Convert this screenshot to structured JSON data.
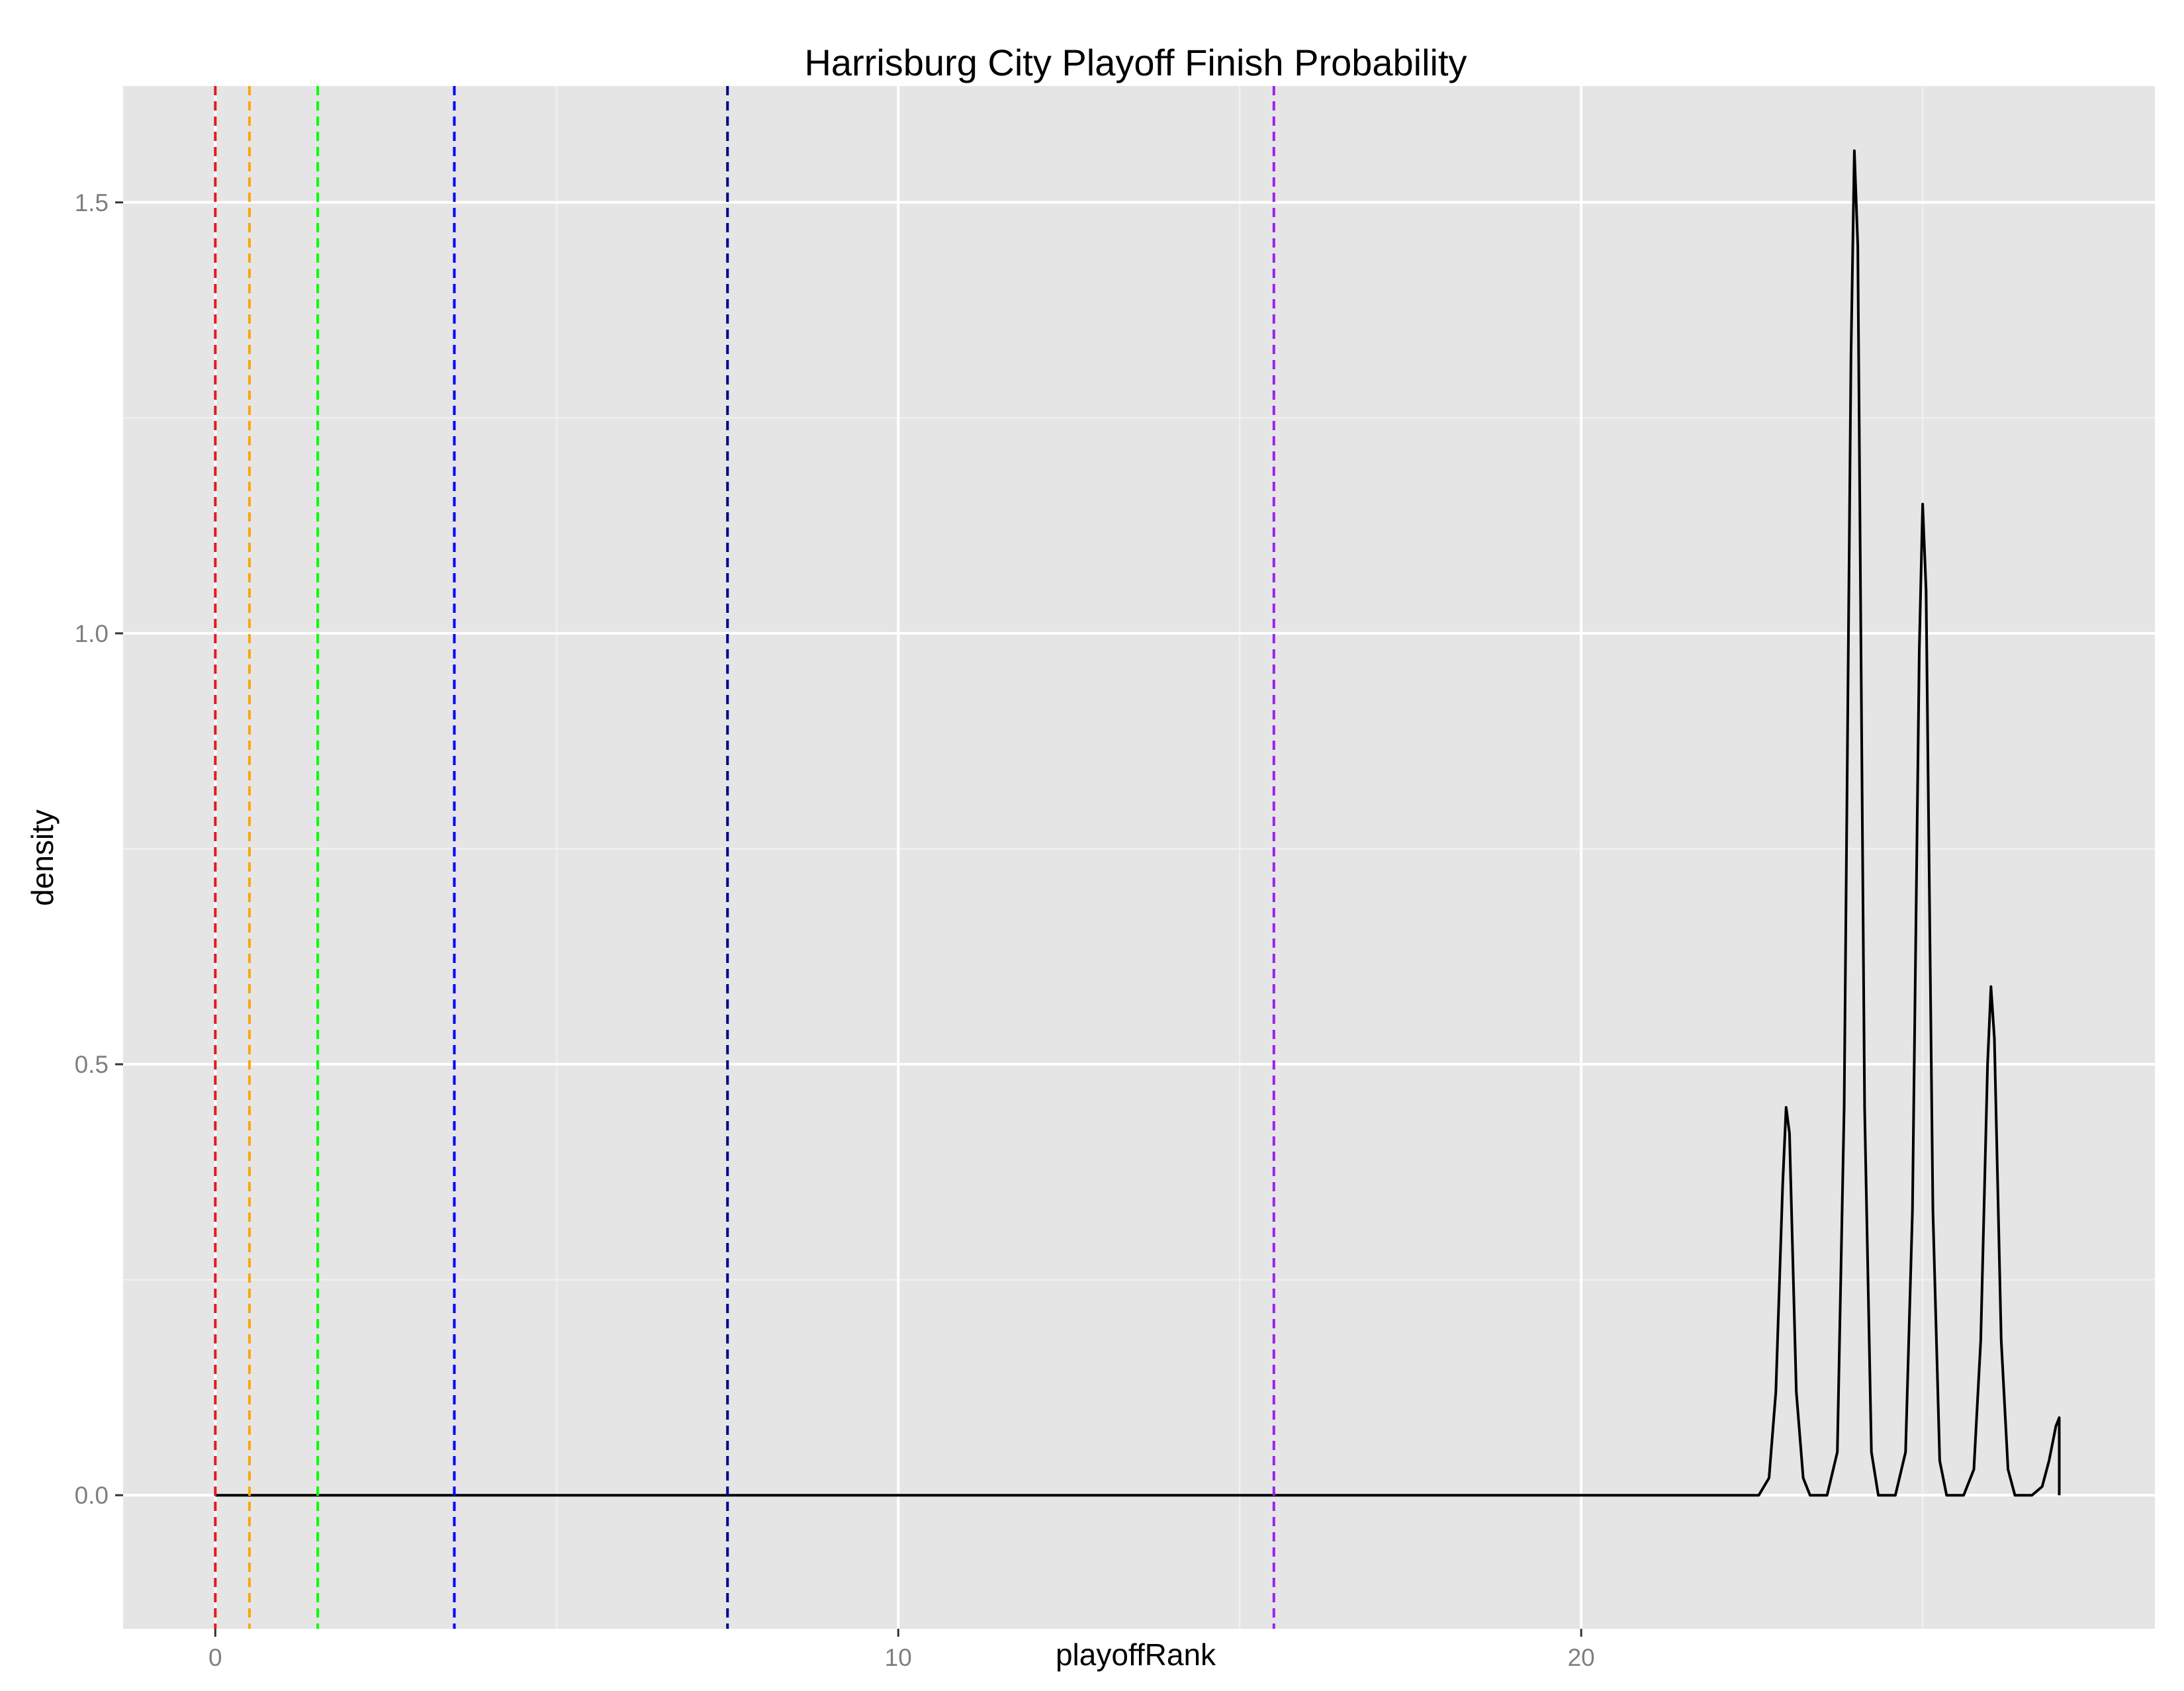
{
  "chart_data": {
    "type": "line",
    "title": "Harrisburg City Playoff Finish Probability",
    "xlabel": "playoffRank",
    "ylabel": "density",
    "xlim": [
      -1.35,
      28.4
    ],
    "ylim": [
      -0.155,
      1.635
    ],
    "x_ticks": [
      0,
      10,
      20
    ],
    "x_tick_labels": [
      "0",
      "10",
      "20"
    ],
    "x_minor_ticks": [
      5,
      15,
      25
    ],
    "y_ticks": [
      0.0,
      0.5,
      1.0,
      1.5
    ],
    "y_tick_labels": [
      "0.0",
      "0.5",
      "1.0",
      "1.5"
    ],
    "y_minor_ticks": [
      0.25,
      0.75,
      1.25
    ],
    "grid": true,
    "legend": "none",
    "colors": {
      "panel_background": "#e5e5e5",
      "grid": "#ffffff",
      "density_line": "#000000",
      "tick_label": "#7f7f7f"
    },
    "reference_lines": [
      {
        "x": 0.0,
        "color": "#e31a1c"
      },
      {
        "x": 0.5,
        "color": "#ffa500"
      },
      {
        "x": 1.5,
        "color": "#00ff00"
      },
      {
        "x": 3.5,
        "color": "#0000ff"
      },
      {
        "x": 7.5,
        "color": "#00008b"
      },
      {
        "x": 15.5,
        "color": "#a020f0"
      }
    ],
    "series": [
      {
        "x": [
          0,
          22.6,
          22.75,
          22.85,
          22.95,
          23.0,
          23.05,
          23.15,
          23.25,
          23.35,
          23.45,
          23.6,
          23.75,
          23.85,
          23.95,
          24.0,
          24.05,
          24.15,
          24.25,
          24.35,
          24.45,
          24.6,
          24.75,
          24.85,
          24.95,
          25.0,
          25.05,
          25.15,
          25.25,
          25.35,
          25.45,
          25.6,
          25.75,
          25.85,
          25.95,
          26.0,
          26.05,
          26.15,
          26.25,
          26.35,
          26.45,
          26.6,
          26.75,
          26.85,
          26.95,
          27.0,
          27.0
        ],
        "y": [
          0,
          0,
          0.02,
          0.12,
          0.36,
          0.45,
          0.42,
          0.12,
          0.02,
          0,
          0,
          0,
          0.05,
          0.45,
          1.32,
          1.56,
          1.45,
          0.45,
          0.05,
          0,
          0,
          0,
          0.05,
          0.33,
          0.98,
          1.15,
          1.05,
          0.33,
          0.04,
          0,
          0,
          0,
          0.03,
          0.18,
          0.5,
          0.59,
          0.53,
          0.18,
          0.03,
          0,
          0,
          0,
          0.01,
          0.04,
          0.08,
          0.09,
          0
        ]
      }
    ]
  }
}
